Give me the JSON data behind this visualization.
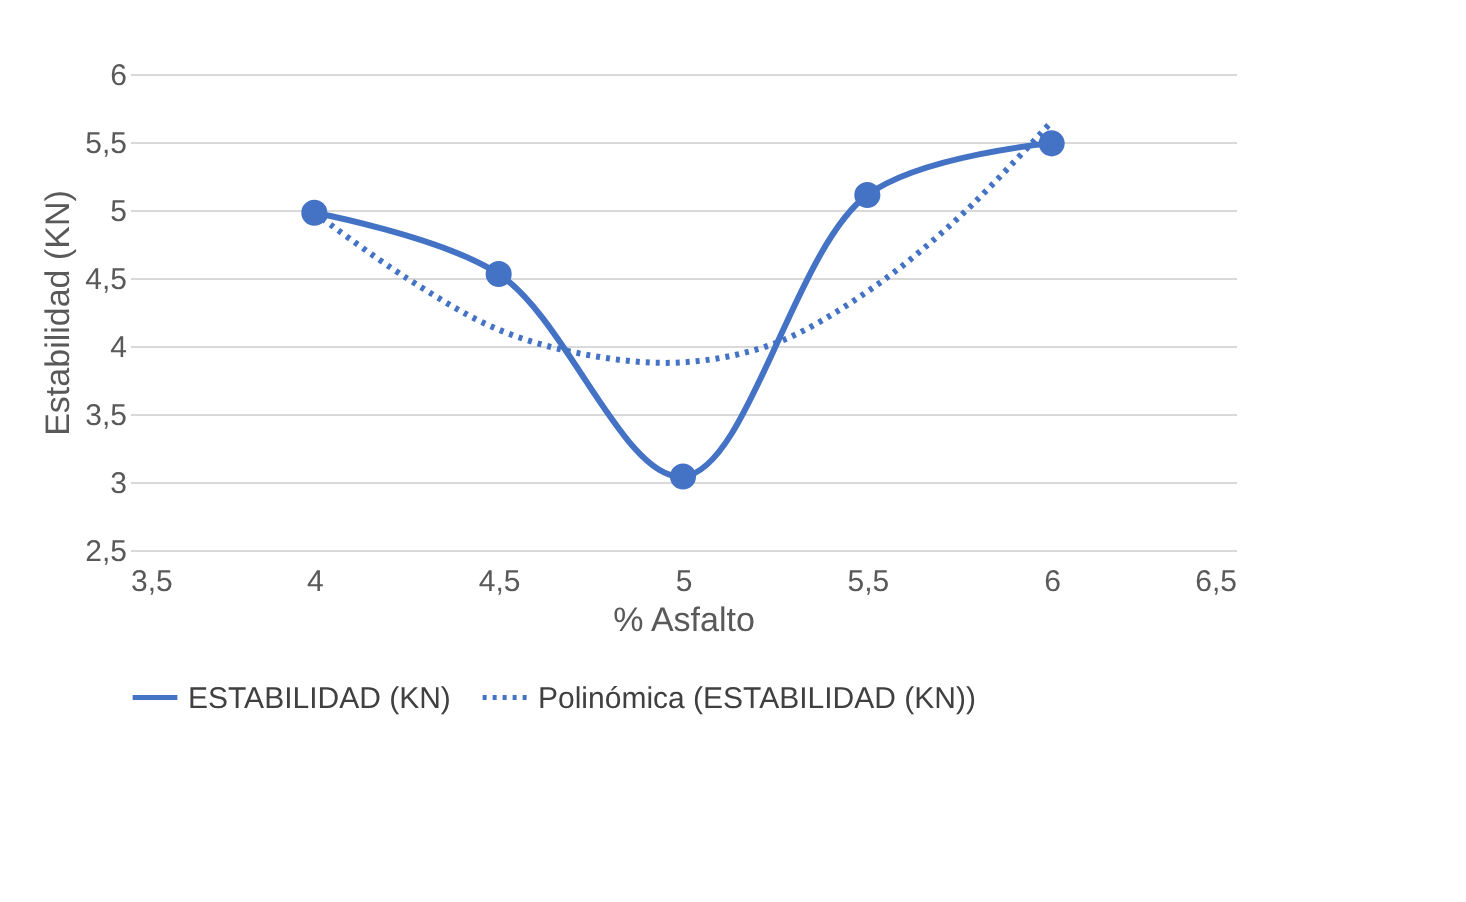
{
  "chart_data": {
    "type": "line",
    "xlabel": "% Asfalto",
    "ylabel": "Estabilidad (KN)",
    "xlim": [
      3.5,
      6.5
    ],
    "xticks": [
      {
        "value": 3.5,
        "label": "3,5"
      },
      4,
      {
        "value": 4.5,
        "label": "4,5"
      },
      5,
      {
        "value": 5.5,
        "label": "5,5"
      },
      6,
      {
        "value": 6.5,
        "label": "6,5"
      }
    ],
    "ylim": [
      2.5,
      6
    ],
    "yticks": [
      {
        "value": 2.5,
        "label": "2,5"
      },
      3,
      {
        "value": 3.5,
        "label": "3,5"
      },
      4,
      {
        "value": 4.5,
        "label": "4,5"
      },
      5,
      {
        "value": 5.5,
        "label": "5,5"
      },
      6
    ],
    "grid": "y",
    "legend": "bottom",
    "series": [
      {
        "name": "ESTABILIDAD (KN)",
        "color": "#4472c4",
        "x": [
          4,
          4.5,
          5,
          5.5,
          6
        ],
        "values": [
          4.98,
          4.53,
          3.04,
          5.11,
          5.49
        ],
        "marker": "circle",
        "line_style": "solid"
      },
      {
        "name": "Polinómica (ESTABILIDAD (KN))",
        "color": "#4472c4",
        "type": "line",
        "x": [
          4,
          4.25,
          4.5,
          4.75,
          5,
          5.25,
          5.5,
          5.75,
          6
        ],
        "values": [
          4.98,
          4.5,
          4.12,
          3.93,
          3.88,
          4.02,
          4.4,
          4.95,
          5.65
        ],
        "marker": "none",
        "line_style": "dotted"
      }
    ]
  }
}
